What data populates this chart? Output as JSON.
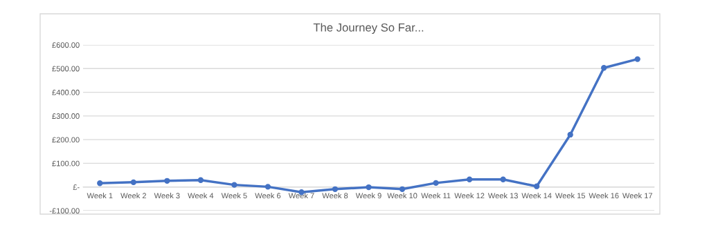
{
  "chart_data": {
    "type": "line",
    "title": "The Journey So Far...",
    "categories": [
      "Week 1",
      "Week 2",
      "Week 3",
      "Week 4",
      "Week 5",
      "Week 6",
      "Week 7",
      "Week 8",
      "Week 9",
      "Week 10",
      "Week 11",
      "Week 12",
      "Week 13",
      "Week 14",
      "Week 15",
      "Week 16",
      "Week 17"
    ],
    "series": [
      {
        "color": "#4472c4",
        "values": [
          16,
          20,
          26,
          29,
          9,
          1,
          -22,
          -9,
          -1,
          -9,
          17,
          32,
          32,
          3,
          221,
          503,
          540
        ]
      }
    ],
    "ylim": [
      -100,
      600
    ],
    "yticks": [
      {
        "value": -100,
        "label": "-£100.00"
      },
      {
        "value": 0,
        "label": "£-"
      },
      {
        "value": 100,
        "label": "£100.00"
      },
      {
        "value": 200,
        "label": "£200.00"
      },
      {
        "value": 300,
        "label": "£300.00"
      },
      {
        "value": 400,
        "label": "£400.00"
      },
      {
        "value": 500,
        "label": "£500.00"
      },
      {
        "value": 600,
        "label": "£600.00"
      }
    ],
    "grid": "y",
    "marker": "circle",
    "line_style": "solid"
  }
}
